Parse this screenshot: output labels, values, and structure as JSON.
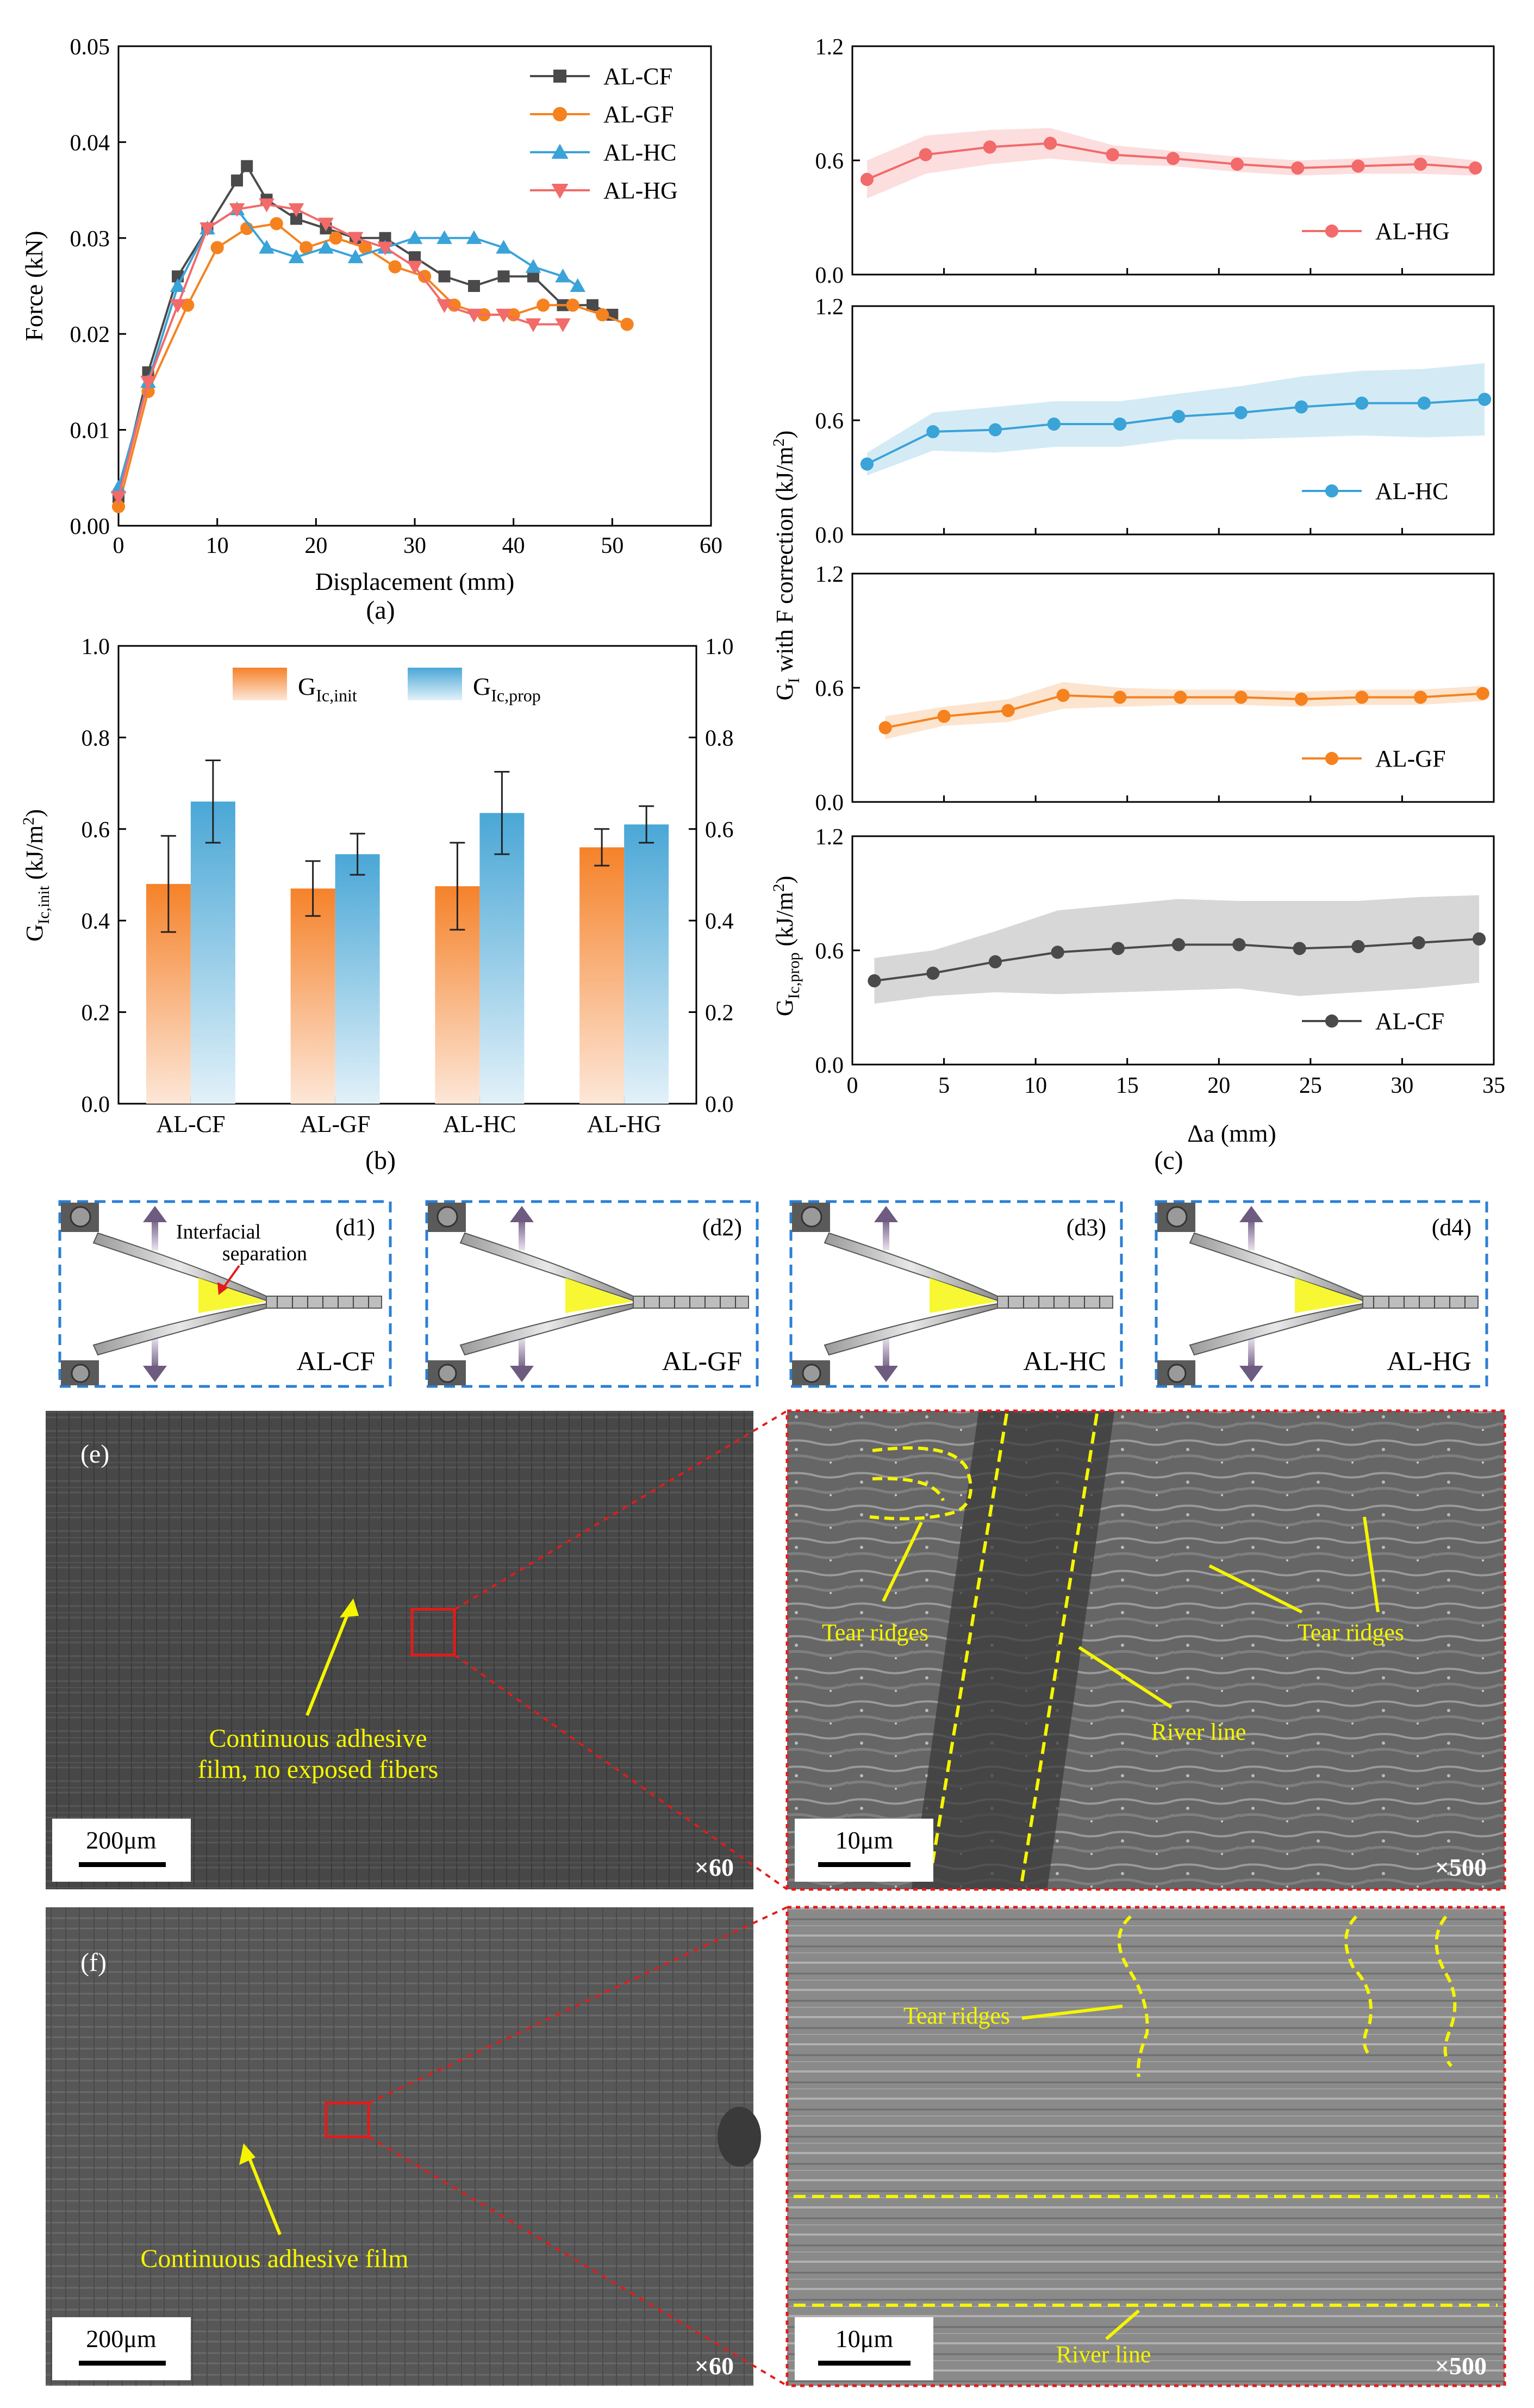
{
  "colors": {
    "cf": "#4a4a4a",
    "gf": "#f5821f",
    "hc": "#3aa3d8",
    "hg": "#f26a6a",
    "init": "#f5822a",
    "prop": "#4aa7d6",
    "yellow": "#f5f500",
    "red": "#e31b1b",
    "dash_blue": "#2a7fd4",
    "sem_bg": "#4d4d4d"
  },
  "panel_labels": {
    "a": "(a)",
    "b": "(b)",
    "c": "(c)"
  },
  "chart_data": [
    {
      "id": "a",
      "type": "line",
      "xlabel": "Displacement (mm)",
      "ylabel": "Force (kN)",
      "xlim": [
        0,
        60
      ],
      "ylim": [
        0,
        0.05
      ],
      "xticks": [
        "0",
        "10",
        "20",
        "30",
        "40",
        "50",
        "60"
      ],
      "yticks": [
        "0.00",
        "0.01",
        "0.02",
        "0.03",
        "0.04",
        "0.05"
      ],
      "series": [
        {
          "name": "AL-CF",
          "color": "#4a4a4a",
          "marker": "square",
          "x": [
            0,
            3,
            6,
            9,
            12,
            13,
            15,
            18,
            21,
            24,
            27,
            30,
            33,
            36,
            39,
            42,
            45,
            48,
            50
          ],
          "y": [
            0.003,
            0.016,
            0.026,
            0.031,
            0.036,
            0.0375,
            0.034,
            0.032,
            0.031,
            0.03,
            0.03,
            0.028,
            0.026,
            0.025,
            0.026,
            0.026,
            0.023,
            0.023,
            0.022
          ]
        },
        {
          "name": "AL-GF",
          "color": "#f5821f",
          "marker": "circle",
          "x": [
            0,
            3,
            7,
            10,
            13,
            16,
            19,
            22,
            25,
            28,
            31,
            34,
            37,
            40,
            43,
            46,
            49,
            51.5
          ],
          "y": [
            0.002,
            0.014,
            0.023,
            0.029,
            0.031,
            0.0315,
            0.029,
            0.03,
            0.029,
            0.027,
            0.026,
            0.023,
            0.022,
            0.022,
            0.023,
            0.023,
            0.022,
            0.021
          ]
        },
        {
          "name": "AL-HC",
          "color": "#3aa3d8",
          "marker": "triangle",
          "x": [
            0,
            3,
            6,
            9,
            12,
            15,
            18,
            21,
            24,
            27,
            30,
            33,
            36,
            39,
            42,
            45,
            46.5
          ],
          "y": [
            0.004,
            0.015,
            0.025,
            0.031,
            0.033,
            0.029,
            0.028,
            0.029,
            0.028,
            0.029,
            0.03,
            0.03,
            0.03,
            0.029,
            0.027,
            0.026,
            0.025
          ]
        },
        {
          "name": "AL-HG",
          "color": "#f26a6a",
          "marker": "triangle-down",
          "x": [
            0,
            3,
            6,
            9,
            12,
            15,
            18,
            21,
            24,
            27,
            30,
            33,
            36,
            39,
            42,
            45
          ],
          "y": [
            0.003,
            0.015,
            0.023,
            0.031,
            0.033,
            0.0335,
            0.033,
            0.0315,
            0.03,
            0.029,
            0.027,
            0.023,
            0.022,
            0.022,
            0.021,
            0.021
          ]
        }
      ]
    },
    {
      "id": "b",
      "type": "bar",
      "categories": [
        "AL-CF",
        "AL-GF",
        "AL-HC",
        "AL-HG"
      ],
      "ylabel_main": "G",
      "ylabel_sub": "Ic,init",
      "ylabel_unit": " (kJ/m",
      "ylabel_sup": "2",
      "ylabel_close": ")",
      "ylabel_right_main": "G",
      "ylabel_right_sub": "Ic,prop",
      "ylim": [
        0,
        1.0
      ],
      "yticks": [
        "0.0",
        "0.2",
        "0.4",
        "0.6",
        "0.8",
        "1.0"
      ],
      "series": [
        {
          "name_main": "G",
          "name_sub": "Ic,init",
          "color": "#f5822a",
          "values": [
            0.48,
            0.47,
            0.475,
            0.56
          ],
          "errors": [
            0.105,
            0.06,
            0.095,
            0.04
          ]
        },
        {
          "name_main": "G",
          "name_sub": "Ic,prop",
          "color": "#4aa7d6",
          "values": [
            0.66,
            0.545,
            0.635,
            0.61
          ],
          "errors": [
            0.09,
            0.045,
            0.09,
            0.04
          ]
        }
      ]
    },
    {
      "id": "c",
      "type": "line",
      "xlabel": "Δa (mm)",
      "xlim": [
        0,
        35
      ],
      "xticks": [
        "0",
        "5",
        "10",
        "15",
        "20",
        "25",
        "30",
        "35"
      ],
      "ylabel_top_main": "G",
      "ylabel_top_sub": "I",
      "ylabel_top_rest": " with F correction (kJ/m",
      "ylabel_top_sup": "2",
      "ylabel_top_close": ")",
      "ylabel_bottom_main": "G",
      "ylabel_bottom_sub": "Ic,prop",
      "ylabel_bottom_rest": " (kJ/m",
      "ylabel_bottom_sup": "2",
      "ylabel_bottom_close": ")",
      "subplots": [
        {
          "name": "AL-HG",
          "color": "#f26a6a",
          "ylim": [
            0,
            1.2
          ],
          "yticks": [
            "0.0",
            "0.6",
            "1.2"
          ],
          "x": [
            0.8,
            4,
            7.5,
            10.8,
            14.2,
            17.5,
            21,
            24.3,
            27.6,
            31,
            34
          ],
          "y": [
            0.5,
            0.63,
            0.67,
            0.69,
            0.63,
            0.61,
            0.58,
            0.56,
            0.57,
            0.58,
            0.56
          ],
          "band": [
            0.1,
            0.1,
            0.09,
            0.08,
            0.05,
            0.04,
            0.04,
            0.04,
            0.04,
            0.05,
            0.04
          ]
        },
        {
          "name": "AL-HC",
          "color": "#3aa3d8",
          "ylim": [
            0,
            1.2
          ],
          "yticks": [
            "0.0",
            "0.6",
            "1.2"
          ],
          "x": [
            0.8,
            4.4,
            7.8,
            11,
            14.6,
            17.8,
            21.2,
            24.5,
            27.8,
            31.2,
            34.5
          ],
          "y": [
            0.37,
            0.54,
            0.55,
            0.58,
            0.58,
            0.62,
            0.64,
            0.67,
            0.69,
            0.69,
            0.71
          ],
          "band": [
            0.06,
            0.1,
            0.12,
            0.12,
            0.12,
            0.12,
            0.14,
            0.16,
            0.17,
            0.18,
            0.19
          ]
        },
        {
          "name": "AL-GF",
          "color": "#f5821f",
          "ylim": [
            0,
            1.2
          ],
          "yticks": [
            "0.0",
            "0.6",
            "1.2"
          ],
          "x": [
            1.8,
            5,
            8.5,
            11.5,
            14.6,
            17.9,
            21.2,
            24.5,
            27.8,
            31,
            34.4
          ],
          "y": [
            0.39,
            0.45,
            0.48,
            0.56,
            0.55,
            0.55,
            0.55,
            0.54,
            0.55,
            0.55,
            0.57
          ],
          "band": [
            0.06,
            0.05,
            0.06,
            0.07,
            0.05,
            0.04,
            0.04,
            0.04,
            0.04,
            0.04,
            0.04
          ]
        },
        {
          "name": "AL-CF",
          "color": "#4a4a4a",
          "ylim": [
            0,
            1.2
          ],
          "yticks": [
            "0.0",
            "0.6",
            "1.2"
          ],
          "x": [
            1.2,
            4.4,
            7.8,
            11.2,
            14.5,
            17.8,
            21.1,
            24.4,
            27.6,
            30.9,
            34.2
          ],
          "y": [
            0.44,
            0.48,
            0.54,
            0.59,
            0.61,
            0.63,
            0.63,
            0.61,
            0.62,
            0.64,
            0.66
          ],
          "band": [
            0.12,
            0.12,
            0.16,
            0.22,
            0.23,
            0.24,
            0.23,
            0.25,
            0.24,
            0.24,
            0.23
          ]
        }
      ]
    }
  ],
  "schematics": [
    {
      "label": "(d1)",
      "name": "AL-CF",
      "annotation_line1": "Interfacial",
      "annotation_line2": "separation"
    },
    {
      "label": "(d2)",
      "name": "AL-GF"
    },
    {
      "label": "(d3)",
      "name": "AL-HC"
    },
    {
      "label": "(d4)",
      "name": "AL-HG"
    }
  ],
  "sem_e": {
    "label": "(e)",
    "left_caption_line1": "Continuous adhesive",
    "left_caption_line2": "film, no exposed fibers",
    "left_scale": "200μm",
    "left_mag": "×60",
    "right_tear_left": "Tear ridges",
    "right_tear_right": "Tear ridges",
    "right_river": "River line",
    "right_scale": "10μm",
    "right_mag": "×500"
  },
  "sem_f": {
    "label": "(f)",
    "left_caption": "Continuous adhesive film",
    "left_scale": "200μm",
    "left_mag": "×60",
    "right_tear": "Tear ridges",
    "right_river": "River line",
    "right_scale": "10μm",
    "right_mag": "×500"
  }
}
